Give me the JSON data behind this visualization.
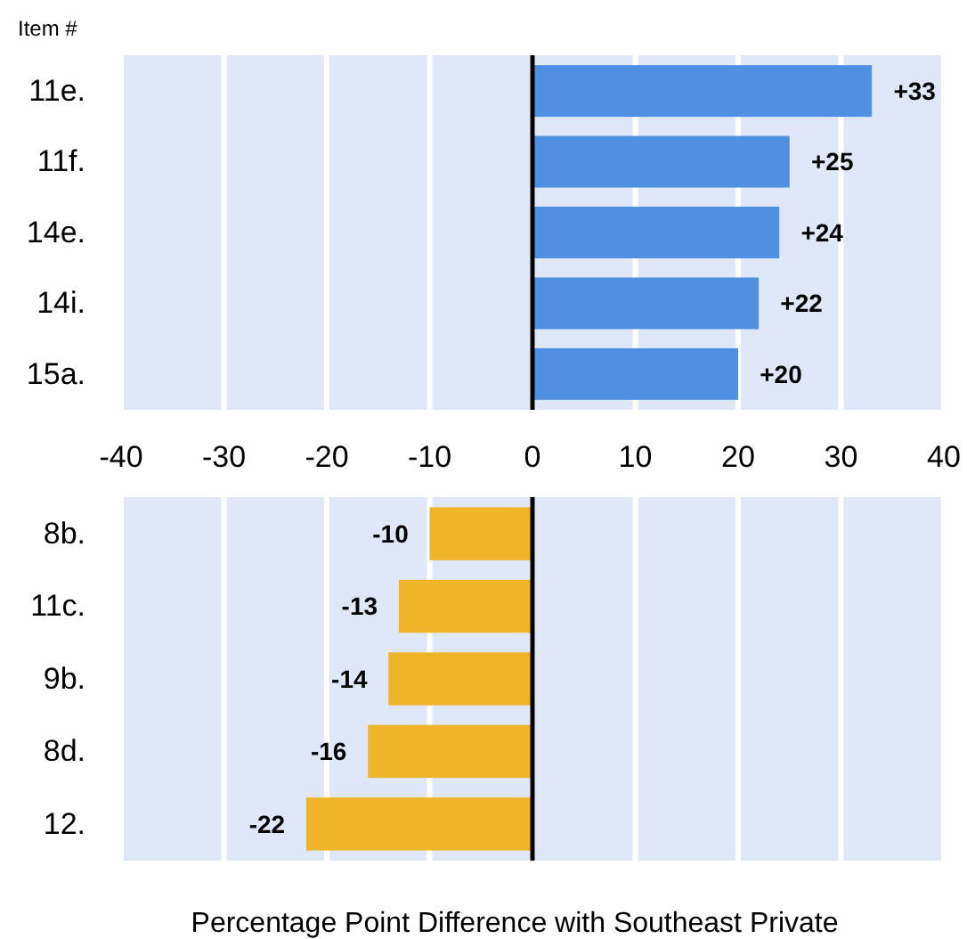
{
  "chart_data": [
    {
      "type": "bar",
      "orientation": "horizontal",
      "ylabel": "Item #",
      "categories": [
        "11e.",
        "11f.",
        "14e.",
        "14i.",
        "15a."
      ],
      "values": [
        33,
        25,
        24,
        22,
        20
      ],
      "value_labels": [
        "+33",
        "+25",
        "+24",
        "+22",
        "+20"
      ],
      "color": "#4f90e2",
      "xlim": [
        -40,
        40
      ],
      "xticks": [
        -40,
        -30,
        -20,
        -10,
        0,
        10,
        20,
        30,
        40
      ],
      "grid": "x"
    },
    {
      "type": "bar",
      "orientation": "horizontal",
      "xlabel": "Percentage Point Difference with Southeast Private",
      "categories": [
        "8b.",
        "11c.",
        "9b.",
        "8d.",
        "12."
      ],
      "values": [
        -10,
        -13,
        -14,
        -16,
        -22
      ],
      "value_labels": [
        "-10",
        "-13",
        "-14",
        "-16",
        "-22"
      ],
      "color": "#f0b429",
      "xlim": [
        -40,
        40
      ],
      "xticks": [
        -40,
        -30,
        -20,
        -10,
        0,
        10,
        20,
        30,
        40
      ],
      "grid": "x",
      "tick_labels": "y"
    }
  ]
}
